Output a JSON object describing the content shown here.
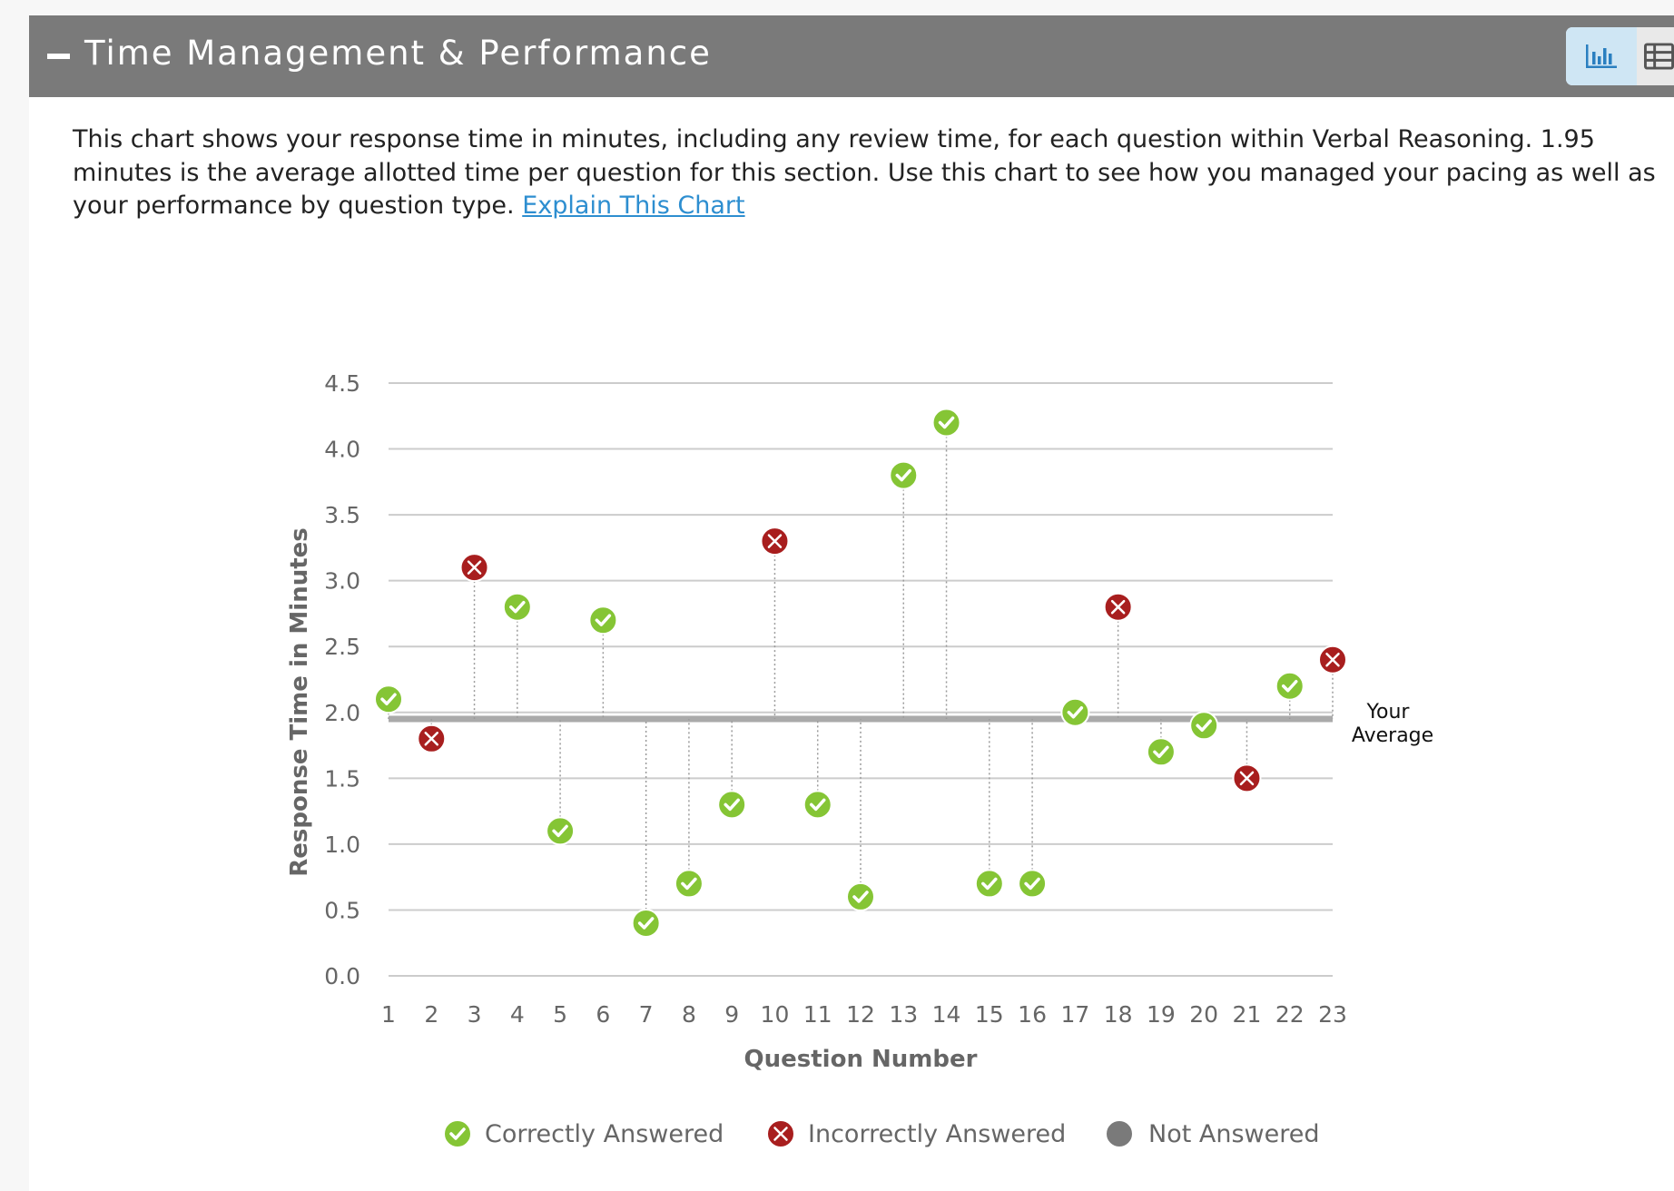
{
  "header": {
    "title": "Time Management & Performance",
    "collapse_icon": "minus-icon",
    "chart_view_icon": "bar-chart-icon",
    "table_view_icon": "table-grid-icon"
  },
  "description": {
    "text": "This chart shows your response time in minutes, including any review time, for each question within Verbal Reasoning. 1.95 minutes is the average allotted time per question for this section. Use this chart to see how you managed your pacing as well as your performance by question type.",
    "link_label": "Explain This Chart"
  },
  "chart_data": {
    "type": "scatter",
    "xlabel": "Question Number",
    "ylabel": "Response Time in Minutes",
    "ylim": [
      0,
      4.5
    ],
    "yticks": [
      "0.0",
      "0.5",
      "1.0",
      "1.5",
      "2.0",
      "2.5",
      "3.0",
      "3.5",
      "4.0",
      "4.5"
    ],
    "x": [
      1,
      2,
      3,
      4,
      5,
      6,
      7,
      8,
      9,
      10,
      11,
      12,
      13,
      14,
      15,
      16,
      17,
      18,
      19,
      20,
      21,
      22,
      23
    ],
    "values": [
      2.1,
      1.8,
      3.1,
      2.8,
      1.1,
      2.7,
      0.4,
      0.7,
      1.3,
      3.3,
      1.3,
      0.6,
      3.8,
      4.2,
      0.7,
      0.7,
      2.0,
      2.8,
      1.7,
      1.9,
      1.5,
      2.2,
      2.4
    ],
    "status": [
      "correct",
      "incorrect",
      "incorrect",
      "correct",
      "correct",
      "correct",
      "correct",
      "correct",
      "correct",
      "incorrect",
      "correct",
      "correct",
      "correct",
      "correct",
      "correct",
      "correct",
      "correct",
      "incorrect",
      "correct",
      "correct",
      "incorrect",
      "correct",
      "incorrect"
    ],
    "average": 1.95,
    "average_label_line1": "Your",
    "average_label_line2": "Average",
    "grid": true,
    "legend_position": "bottom",
    "legend": [
      {
        "key": "correct",
        "label": "Correctly Answered"
      },
      {
        "key": "incorrect",
        "label": "Incorrectly Answered"
      },
      {
        "key": "unanswered",
        "label": "Not Answered"
      }
    ],
    "colors": {
      "correct": "#85c535",
      "incorrect": "#a81e1e",
      "unanswered": "#7a7a7a",
      "average_line": "#aaaaaa",
      "grid": "#cccccc",
      "tick_text": "#666666"
    }
  }
}
